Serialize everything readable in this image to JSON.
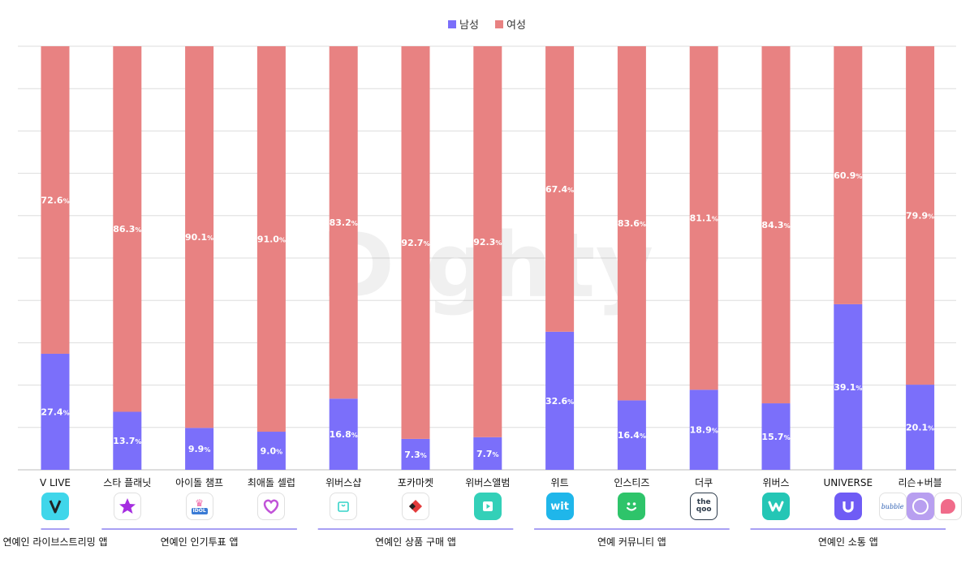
{
  "chart_data": {
    "type": "bar",
    "stacked": true,
    "percent": true,
    "title": "",
    "xlabel": "",
    "ylabel": "",
    "ylim": [
      0,
      100
    ],
    "grid": true,
    "legend_position": "top-center",
    "watermark": "Dighty",
    "categories": [
      "V LIVE",
      "스타 플래닛",
      "아이돌 챔프",
      "최애돌 셀럽",
      "위버스샵",
      "포카마켓",
      "위버스앨범",
      "위트",
      "인스티즈",
      "더쿠",
      "위버스",
      "UNIVERSE",
      "리슨+버블"
    ],
    "series": [
      {
        "name": "남성",
        "color": "#7b6ffa",
        "values": [
          27.4,
          13.7,
          9.9,
          9.0,
          16.8,
          7.3,
          7.7,
          32.6,
          16.4,
          18.9,
          15.7,
          39.1,
          20.1
        ]
      },
      {
        "name": "여성",
        "color": "#e88282",
        "values": [
          72.6,
          86.3,
          90.1,
          91.0,
          83.2,
          92.7,
          92.3,
          67.4,
          83.6,
          81.1,
          84.3,
          60.9,
          79.9
        ]
      }
    ],
    "groups": [
      {
        "label": "연예인 라이브스트리밍 앱",
        "start": 0,
        "end": 0
      },
      {
        "label": "연예인 인기투표 앱",
        "start": 1,
        "end": 3
      },
      {
        "label": "연예인 상품 구매 앱",
        "start": 4,
        "end": 6
      },
      {
        "label": "연예 커뮤니티 앱",
        "start": 7,
        "end": 9
      },
      {
        "label": "연예인 소통 앱",
        "start": 10,
        "end": 12
      }
    ],
    "icons": [
      "vlive-icon",
      "star-planet-icon",
      "idol-champ-icon",
      "choeaedol-icon",
      "weverse-shop-icon",
      "pocamarket-icon",
      "weverse-album-icon",
      "wit-icon",
      "instiz-icon",
      "theqoo-icon",
      "weverse-icon",
      "universe-icon",
      "lysn-bubble-icon"
    ],
    "icon_text": {
      "idol-champ-icon": "IDOL",
      "wit-icon": "wit",
      "theqoo-icon": "the qoo",
      "lysn-bubble-icon": "bubble"
    }
  }
}
